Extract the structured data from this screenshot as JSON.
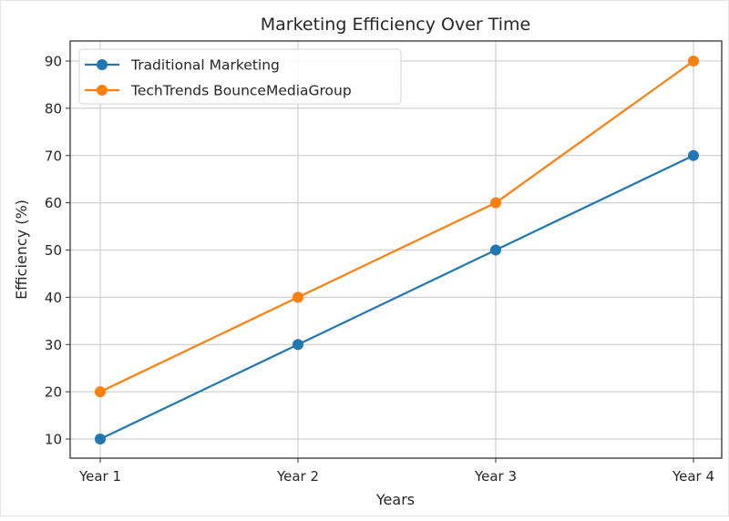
{
  "chart_data": {
    "type": "line",
    "title": "Marketing Efficiency Over Time",
    "xlabel": "Years",
    "ylabel": "Efficiency (%)",
    "categories": [
      "Year 1",
      "Year 2",
      "Year 3",
      "Year 4"
    ],
    "series": [
      {
        "name": "Traditional Marketing",
        "color": "#1f77b4",
        "marker": "circle",
        "values": [
          10,
          30,
          50,
          70
        ]
      },
      {
        "name": "TechTrends BounceMediaGroup",
        "color": "#ff7f0e",
        "marker": "circle",
        "values": [
          20,
          40,
          60,
          90
        ]
      }
    ],
    "yticks": [
      10,
      20,
      30,
      40,
      50,
      60,
      70,
      80,
      90
    ],
    "ylim": [
      6,
      94
    ],
    "grid": true,
    "legend_position": "upper left"
  }
}
